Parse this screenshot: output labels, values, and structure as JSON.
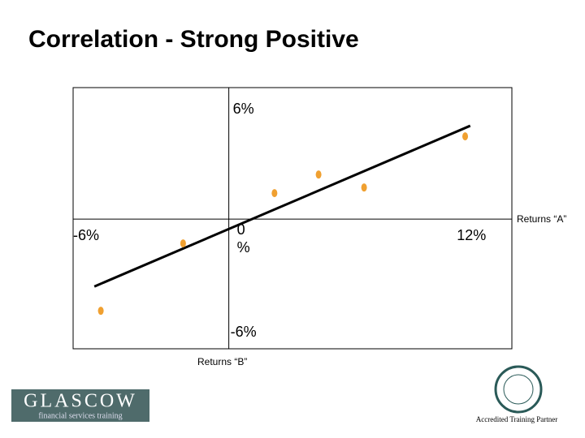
{
  "chart_data": {
    "type": "scatter",
    "title": "Correlation - Strong Positive",
    "x_label": "Returns “A”",
    "y_label": "Returns “B”",
    "xlim": [
      -7.7,
      14.0
    ],
    "ylim": [
      -7.1,
      7.2
    ],
    "xticks": [
      {
        "value": -6,
        "label": "-6%"
      },
      {
        "value": 0,
        "label": "0 %"
      },
      {
        "value": 12,
        "label": "12%"
      }
    ],
    "yticks": [
      {
        "value": 6,
        "label": "6%"
      },
      {
        "value": -6,
        "label": "-6%"
      }
    ],
    "series": [
      {
        "color": "#f0a030",
        "x": [
          -6.33,
          -2.26,
          2.26,
          4.44,
          6.69,
          11.69
        ],
        "values": [
          -5.02,
          -1.33,
          1.42,
          2.44,
          1.73,
          4.53
        ]
      }
    ],
    "trendline": {
      "x": [
        -6.65,
        11.94
      ],
      "y": [
        -3.69,
        5.11
      ],
      "color": "#000000"
    }
  },
  "logo": {
    "name": "GLASCOW",
    "tagline": "financial services training"
  },
  "badge": {
    "caption": "Accredited Training Partner"
  }
}
